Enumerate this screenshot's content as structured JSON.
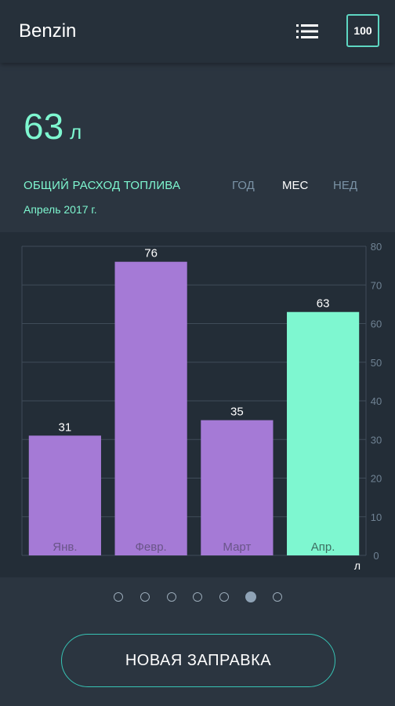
{
  "app": {
    "title": "Benzin",
    "list_icon": "list-icon",
    "box_label": "100"
  },
  "summary": {
    "total_value": "63",
    "total_unit": "л",
    "section_title": "ОБЩИЙ РАСХОД ТОПЛИВА",
    "period": "Апрель 2017 г."
  },
  "tabs": [
    {
      "label": "ГОД",
      "active": false
    },
    {
      "label": "МЕС",
      "active": true
    },
    {
      "label": "НЕД",
      "active": false
    }
  ],
  "chart_data": {
    "type": "bar",
    "categories": [
      "Янв.",
      "Февр.",
      "Март",
      "Апр."
    ],
    "values": [
      31,
      76,
      35,
      63
    ],
    "data_labels": [
      "31",
      "76",
      "35",
      "63"
    ],
    "ylim": [
      0,
      80
    ],
    "yticks": [
      0,
      10,
      20,
      30,
      40,
      50,
      60,
      70,
      80
    ],
    "yunit": "л",
    "y_axis_position": "right",
    "grid": true,
    "highlight_index": 3,
    "colors": {
      "bar": "#a57ad6",
      "highlight": "#7ef7d0",
      "grid": "#3f4c59",
      "axis_text": "#6f8293",
      "category_text": "#6a5589",
      "highlight_category_text": "#3d6f62",
      "value_text": "#ffffff"
    }
  },
  "pager": {
    "count": 7,
    "active_index": 5
  },
  "actions": {
    "new_refuel_label": "НОВАЯ ЗАПРАВКА"
  },
  "colors": {
    "accent": "#7ef7d0",
    "button_border": "#37c3b4",
    "background": "#2b3540",
    "appbar": "#26303a"
  }
}
